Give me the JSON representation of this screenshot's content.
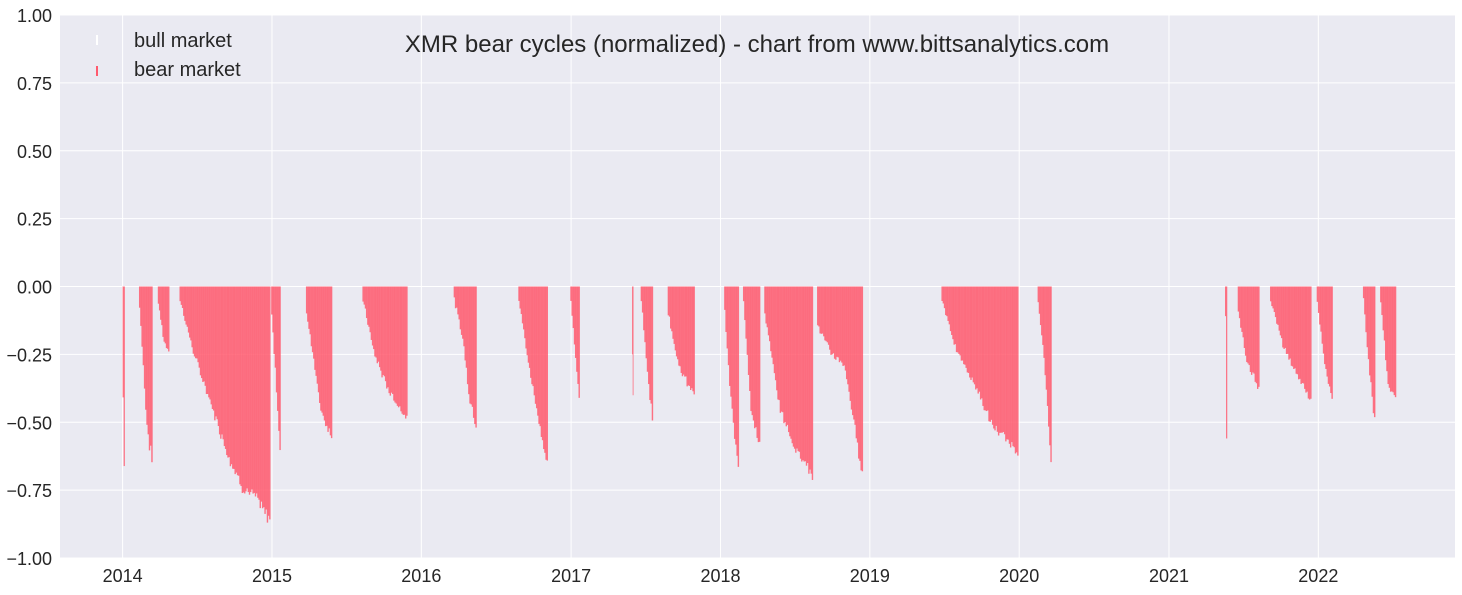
{
  "chart_data": {
    "type": "bar",
    "title": "XMR bear cycles (normalized)  - chart from www.bittsanalytics.com",
    "xlabel": "",
    "ylabel": "",
    "x_axis": {
      "type": "date",
      "range": [
        "2013-08-01",
        "2022-12-01"
      ],
      "ticks": [
        "2014",
        "2015",
        "2016",
        "2017",
        "2018",
        "2019",
        "2020",
        "2021",
        "2022"
      ]
    },
    "y_axis": {
      "range": [
        -1.0,
        1.0
      ],
      "ticks": [
        "1.00",
        "0.75",
        "0.50",
        "0.25",
        "0.00",
        "−0.25",
        "−0.50",
        "−0.75",
        "−1.00"
      ]
    },
    "grid": true,
    "legend": {
      "position": "top-left",
      "entries": [
        {
          "label": "bull market",
          "color": "#ffffff"
        },
        {
          "label": "bear market",
          "color": "#ff5a6e"
        }
      ]
    },
    "colors": {
      "background": "#eaeaf2",
      "grid": "#ffffff",
      "bear": "#ff5a6e",
      "bear_edge": "#e8607a"
    },
    "bear_episodes": [
      {
        "start": "2014-01-01",
        "end": "2014-01-06",
        "shape": [
          [
            0,
            -0.42
          ],
          [
            0.45,
            -0.56
          ],
          [
            1,
            -0.66
          ]
        ]
      },
      {
        "start": "2014-02-10",
        "end": "2014-03-15",
        "shape": [
          [
            0,
            -0.08
          ],
          [
            0.3,
            -0.3
          ],
          [
            0.55,
            -0.5
          ],
          [
            0.8,
            -0.6
          ],
          [
            1,
            -0.65
          ]
        ]
      },
      {
        "start": "2014-03-28",
        "end": "2014-04-25",
        "shape": [
          [
            0,
            -0.06
          ],
          [
            0.5,
            -0.2
          ],
          [
            1,
            -0.25
          ]
        ]
      },
      {
        "start": "2014-05-20",
        "end": "2014-12-28",
        "shape": [
          [
            0,
            -0.05
          ],
          [
            0.15,
            -0.25
          ],
          [
            0.35,
            -0.45
          ],
          [
            0.55,
            -0.65
          ],
          [
            0.7,
            -0.76
          ],
          [
            0.85,
            -0.8
          ],
          [
            0.95,
            -0.86
          ],
          [
            1,
            -0.88
          ]
        ]
      },
      {
        "start": "2014-12-30",
        "end": "2015-01-22",
        "shape": [
          [
            0,
            -0.1
          ],
          [
            0.5,
            -0.35
          ],
          [
            1,
            -0.62
          ]
        ]
      },
      {
        "start": "2015-03-25",
        "end": "2015-05-28",
        "shape": [
          [
            0,
            -0.1
          ],
          [
            0.3,
            -0.28
          ],
          [
            0.55,
            -0.45
          ],
          [
            0.8,
            -0.53
          ],
          [
            1,
            -0.58
          ]
        ]
      },
      {
        "start": "2015-08-10",
        "end": "2015-11-28",
        "shape": [
          [
            0,
            -0.05
          ],
          [
            0.25,
            -0.25
          ],
          [
            0.55,
            -0.38
          ],
          [
            0.8,
            -0.45
          ],
          [
            1,
            -0.49
          ]
        ]
      },
      {
        "start": "2016-03-20",
        "end": "2016-05-15",
        "shape": [
          [
            0,
            -0.05
          ],
          [
            0.4,
            -0.2
          ],
          [
            0.7,
            -0.42
          ],
          [
            1,
            -0.52
          ]
        ]
      },
      {
        "start": "2016-08-25",
        "end": "2016-11-05",
        "shape": [
          [
            0,
            -0.05
          ],
          [
            0.35,
            -0.3
          ],
          [
            0.7,
            -0.5
          ],
          [
            1,
            -0.68
          ]
        ]
      },
      {
        "start": "2016-12-30",
        "end": "2017-01-22",
        "shape": [
          [
            0,
            -0.05
          ],
          [
            0.5,
            -0.25
          ],
          [
            1,
            -0.42
          ]
        ]
      },
      {
        "start": "2017-05-30",
        "end": "2017-06-02",
        "shape": [
          [
            0,
            -0.25
          ],
          [
            1,
            -0.4
          ]
        ]
      },
      {
        "start": "2017-06-20",
        "end": "2017-07-20",
        "shape": [
          [
            0,
            -0.05
          ],
          [
            0.5,
            -0.3
          ],
          [
            1,
            -0.5
          ]
        ]
      },
      {
        "start": "2017-08-25",
        "end": "2017-10-30",
        "shape": [
          [
            0,
            -0.1
          ],
          [
            0.4,
            -0.3
          ],
          [
            0.75,
            -0.37
          ],
          [
            1,
            -0.4
          ]
        ]
      },
      {
        "start": "2018-01-10",
        "end": "2018-02-15",
        "shape": [
          [
            0,
            -0.1
          ],
          [
            0.4,
            -0.4
          ],
          [
            0.75,
            -0.58
          ],
          [
            1,
            -0.67
          ]
        ]
      },
      {
        "start": "2018-02-25",
        "end": "2018-04-08",
        "shape": [
          [
            0,
            -0.05
          ],
          [
            0.45,
            -0.45
          ],
          [
            0.8,
            -0.56
          ],
          [
            1,
            -0.6
          ]
        ]
      },
      {
        "start": "2018-04-18",
        "end": "2018-08-15",
        "shape": [
          [
            0,
            -0.1
          ],
          [
            0.3,
            -0.45
          ],
          [
            0.6,
            -0.6
          ],
          [
            0.85,
            -0.66
          ],
          [
            1,
            -0.72
          ]
        ]
      },
      {
        "start": "2018-08-25",
        "end": "2018-12-15",
        "shape": [
          [
            0,
            -0.15
          ],
          [
            0.3,
            -0.25
          ],
          [
            0.6,
            -0.3
          ],
          [
            0.85,
            -0.55
          ],
          [
            1,
            -0.72
          ]
        ]
      },
      {
        "start": "2019-06-25",
        "end": "2019-12-30",
        "shape": [
          [
            0,
            -0.05
          ],
          [
            0.2,
            -0.25
          ],
          [
            0.45,
            -0.38
          ],
          [
            0.65,
            -0.52
          ],
          [
            0.85,
            -0.58
          ],
          [
            1,
            -0.62
          ]
        ]
      },
      {
        "start": "2020-02-15",
        "end": "2020-03-20",
        "shape": [
          [
            0,
            -0.05
          ],
          [
            0.5,
            -0.3
          ],
          [
            1,
            -0.66
          ]
        ]
      },
      {
        "start": "2021-05-18",
        "end": "2021-05-23",
        "shape": [
          [
            0,
            -0.1
          ],
          [
            0.7,
            -0.5
          ],
          [
            1,
            -0.57
          ]
        ]
      },
      {
        "start": "2021-06-18",
        "end": "2021-08-10",
        "shape": [
          [
            0,
            -0.1
          ],
          [
            0.4,
            -0.28
          ],
          [
            0.75,
            -0.34
          ],
          [
            1,
            -0.38
          ]
        ]
      },
      {
        "start": "2021-09-05",
        "end": "2021-12-15",
        "shape": [
          [
            0,
            -0.05
          ],
          [
            0.3,
            -0.22
          ],
          [
            0.6,
            -0.32
          ],
          [
            0.85,
            -0.38
          ],
          [
            1,
            -0.43
          ]
        ]
      },
      {
        "start": "2021-12-28",
        "end": "2022-02-05",
        "shape": [
          [
            0,
            -0.05
          ],
          [
            0.5,
            -0.3
          ],
          [
            1,
            -0.43
          ]
        ]
      },
      {
        "start": "2022-04-20",
        "end": "2022-05-20",
        "shape": [
          [
            0,
            -0.05
          ],
          [
            0.5,
            -0.3
          ],
          [
            1,
            -0.51
          ]
        ]
      },
      {
        "start": "2022-06-01",
        "end": "2022-07-10",
        "shape": [
          [
            0,
            -0.05
          ],
          [
            0.5,
            -0.38
          ],
          [
            1,
            -0.42
          ]
        ]
      }
    ]
  }
}
